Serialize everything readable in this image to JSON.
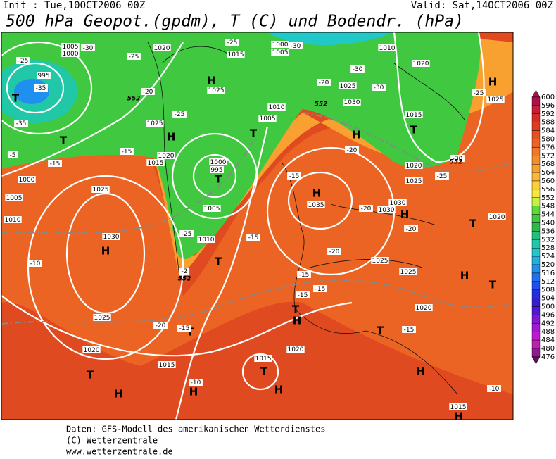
{
  "header": {
    "init": "Init : Tue,10OCT2006 00Z",
    "valid": "Valid: Sat,14OCT2006 00Z",
    "title": "500 hPa Geopot.(gpdm), T (C) und Bodendr. (hPa)"
  },
  "colorbar": {
    "ticks": [
      600,
      596,
      592,
      588,
      584,
      580,
      576,
      572,
      568,
      564,
      560,
      556,
      552,
      548,
      544,
      540,
      536,
      532,
      528,
      524,
      520,
      516,
      512,
      508,
      504,
      500,
      496,
      492,
      488,
      484,
      480,
      476
    ],
    "colors": [
      "#b0104a",
      "#c81e3c",
      "#d82a28",
      "#e03c1e",
      "#e85020",
      "#ec6424",
      "#f07828",
      "#f48c2c",
      "#f8a030",
      "#fcb834",
      "#fcd038",
      "#f8e83c",
      "#c8f040",
      "#60d83c",
      "#40c840",
      "#30b848",
      "#20c080",
      "#20c8a8",
      "#20c8c8",
      "#20b0e0",
      "#2090f0",
      "#2070f0",
      "#2050f0",
      "#2030e0",
      "#3020d0",
      "#5018d0",
      "#8018d0",
      "#a018d0",
      "#c018d0",
      "#c020b0",
      "#901890",
      "#601060"
    ]
  },
  "pressure_centers": [
    "H",
    "H",
    "H",
    "H",
    "H",
    "H",
    "H",
    "H",
    "H",
    "H",
    "H",
    "H",
    "H",
    "H",
    "T",
    "T",
    "T",
    "T",
    "T",
    "T",
    "T",
    "T",
    "T",
    "T",
    "T",
    "T",
    "T"
  ],
  "isobar_labels": [
    "995",
    "1005",
    "1000",
    "1020",
    "1015",
    "1000",
    "1005",
    "1010",
    "1020",
    "1025",
    "1010",
    "1005",
    "1030",
    "1025",
    "1015",
    "1020",
    "1025",
    "1025",
    "1020",
    "1015",
    "1000",
    "995",
    "1005",
    "1010",
    "1035",
    "1030",
    "1030",
    "1025",
    "1025",
    "1020",
    "1020",
    "1025",
    "1030",
    "1025",
    "1020",
    "1015",
    "1015",
    "1020",
    "1005",
    "1010",
    "1000",
    "1025",
    "1015"
  ],
  "temperature_labels": [
    "-35",
    "-25",
    "-30",
    "-20",
    "-25",
    "-25",
    "-30",
    "-30",
    "-30",
    "-20",
    "-25",
    "-15",
    "-15",
    "-25",
    "-15",
    "-15",
    "-20",
    "-20",
    "-20",
    "-20",
    "-15",
    "-15",
    "-15",
    "-20",
    "-15",
    "-15",
    "-10",
    "-10",
    "-10",
    "-25",
    "-25",
    "-30",
    "-2",
    "-35",
    "-5"
  ],
  "height_labels": [
    "552",
    "552",
    "552",
    "552"
  ],
  "footer": [
    "Daten: GFS-Modell des amerikanischen Wetterdienstes",
    "(C) Wetterzentrale",
    "www.wetterzentrale.de"
  ]
}
